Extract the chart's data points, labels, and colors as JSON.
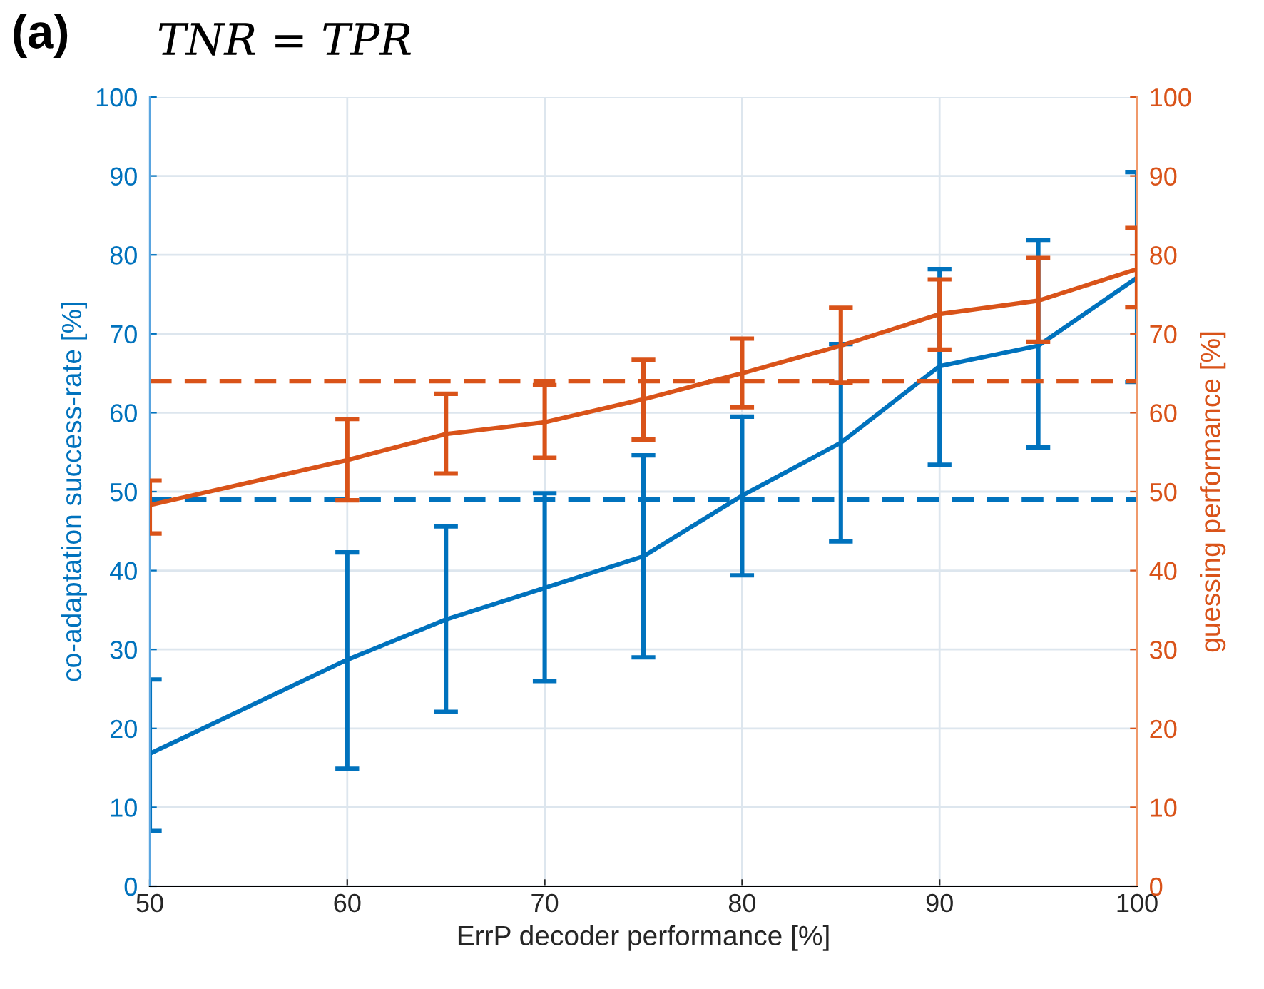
{
  "chart_data": {
    "type": "line",
    "title": "(a)",
    "subtitle": "TNR = TPR",
    "xlabel": "ErrP decoder performance [%]",
    "ylabel": "co-adaptation success-rate [%]",
    "y2label": "guessing performance [%]",
    "x": [
      50,
      60,
      65,
      70,
      75,
      80,
      85,
      90,
      95,
      100
    ],
    "series": [
      {
        "color": "#0072bd",
        "values": [
          16.8,
          28.7,
          33.8,
          37.8,
          41.8,
          49.5,
          56.2,
          65.9,
          68.5,
          77.1
        ],
        "errors": [
          [
            7,
            26.2
          ],
          [
            14.9,
            42.3
          ],
          [
            22.1,
            45.6
          ],
          [
            26,
            49.8
          ],
          [
            29,
            54.6
          ],
          [
            39.4,
            59.5
          ],
          [
            43.7,
            68.7
          ],
          [
            53.4,
            78.2
          ],
          [
            55.6,
            81.9
          ],
          [
            63.9,
            90.5
          ]
        ]
      },
      {
        "color": "#d95319",
        "axis": "y2",
        "values": [
          48.3,
          54,
          57.3,
          58.8,
          61.7,
          65,
          68.5,
          72.5,
          74.2,
          78.2
        ],
        "errors": [
          [
            44.7,
            51.4
          ],
          [
            48.9,
            59.2
          ],
          [
            52.3,
            62.4
          ],
          [
            54.3,
            63.5
          ],
          [
            56.6,
            66.7
          ],
          [
            60.7,
            69.4
          ],
          [
            63.8,
            73.3
          ],
          [
            68,
            76.9
          ],
          [
            69,
            79.6
          ],
          [
            73.4,
            83.4
          ]
        ]
      }
    ],
    "ref_lines": [
      {
        "axis": "y",
        "value": 49,
        "color": "#0072bd",
        "line_style": "dashed"
      },
      {
        "axis": "y2",
        "value": 64,
        "color": "#d95319",
        "line_style": "dashed"
      }
    ],
    "xlim": [
      50,
      100
    ],
    "xticks": [
      50,
      60,
      70,
      80,
      90,
      100
    ],
    "ylim": [
      0,
      100
    ],
    "yticks": [
      0,
      10,
      20,
      30,
      40,
      50,
      60,
      70,
      80,
      90,
      100
    ],
    "y2lim": [
      0,
      100
    ],
    "y2ticks": [
      0,
      10,
      20,
      30,
      40,
      50,
      60,
      70,
      80,
      90,
      100
    ],
    "grid": true,
    "marker": "none",
    "line_style": "solid"
  }
}
